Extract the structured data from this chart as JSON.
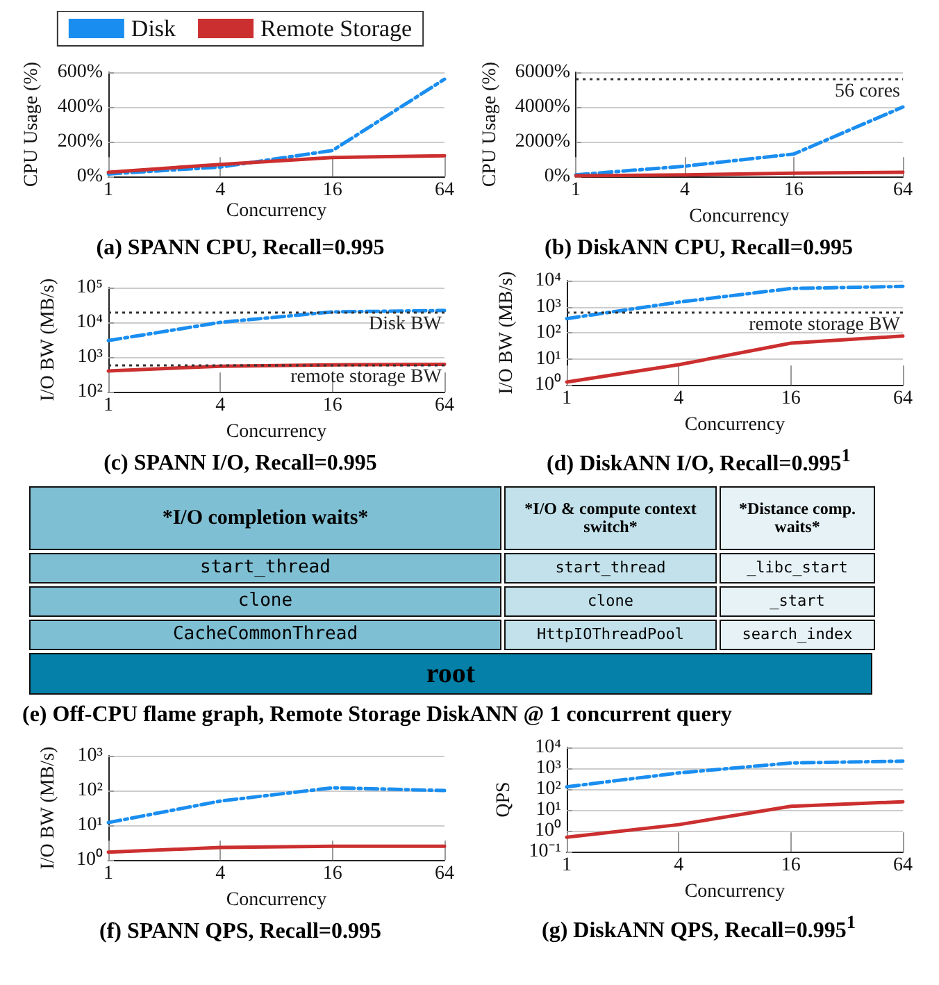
{
  "chart_data": [
    {
      "type": "line",
      "title": "(a) SPANN CPU, Recall=0.995",
      "xlabel": "Concurrency",
      "ylabel": "CPU Usage (%)",
      "log": "x",
      "x": [
        1,
        4,
        16,
        64
      ],
      "xlim": [
        1,
        64
      ],
      "xticks": [
        1,
        4,
        16,
        64
      ],
      "ylim": [
        0,
        600
      ],
      "yticks": [
        {
          "value": 0,
          "label": "0%"
        },
        {
          "value": 200,
          "label": "200%"
        },
        {
          "value": 400,
          "label": "400%"
        },
        {
          "value": 600,
          "label": "600%"
        }
      ],
      "grid": "y",
      "legend": "top",
      "series": [
        {
          "name": "Disk",
          "color": "#1a8ef0",
          "line_style": "dashed",
          "values": [
            15,
            55,
            150,
            560
          ]
        },
        {
          "name": "Remote Storage",
          "color": "#cc2f2f",
          "line_style": "solid",
          "values": [
            25,
            70,
            110,
            120
          ]
        }
      ]
    },
    {
      "type": "line",
      "title": "(b) DiskANN CPU, Recall=0.995",
      "xlabel": "Concurrency",
      "ylabel": "CPU Usage (%)",
      "log": "x",
      "x": [
        1,
        4,
        16,
        64
      ],
      "xlim": [
        1,
        64
      ],
      "xticks": [
        1,
        4,
        16,
        64
      ],
      "ylim": [
        0,
        6000
      ],
      "yticks": [
        {
          "value": 0,
          "label": "0%"
        },
        {
          "value": 2000,
          "label": "2000%"
        },
        {
          "value": 4000,
          "label": "4000%"
        },
        {
          "value": 6000,
          "label": "6000%"
        }
      ],
      "grid": "y",
      "ref_lines": [
        {
          "axis": "y",
          "value": 5600,
          "label": "56 cores",
          "line_style": "dotted",
          "color": "#333333"
        }
      ],
      "series": [
        {
          "color": "#1a8ef0",
          "line_style": "dashed",
          "values": [
            100,
            600,
            1300,
            4000
          ]
        },
        {
          "color": "#cc2f2f",
          "line_style": "solid",
          "values": [
            50,
            100,
            200,
            250
          ]
        }
      ]
    },
    {
      "type": "line",
      "title": "(c) SPANN I/O, Recall=0.995",
      "xlabel": "Concurrency",
      "ylabel": "I/O BW (MB/s)",
      "log": "xy",
      "x": [
        1,
        4,
        16,
        64
      ],
      "xlim": [
        1,
        64
      ],
      "xticks": [
        1,
        4,
        16,
        64
      ],
      "ylim": [
        100,
        100000
      ],
      "yticks": [
        {
          "value": 100,
          "label": "10²"
        },
        {
          "value": 1000,
          "label": "10³"
        },
        {
          "value": 10000,
          "label": "10⁴"
        },
        {
          "value": 100000,
          "label": "10⁵"
        }
      ],
      "grid": "y",
      "ref_lines": [
        {
          "axis": "y",
          "value": 20000,
          "label": "Disk BW",
          "line_style": "dotted",
          "color": "#333333"
        },
        {
          "axis": "y",
          "value": 600,
          "label": "remote storage BW",
          "line_style": "dotted",
          "color": "#333333"
        }
      ],
      "series": [
        {
          "color": "#1a8ef0",
          "line_style": "dashed",
          "values": [
            3000,
            10000,
            20000,
            22000
          ]
        },
        {
          "color": "#cc2f2f",
          "line_style": "solid",
          "values": [
            400,
            550,
            600,
            620
          ]
        }
      ]
    },
    {
      "type": "line",
      "title": "(d) DiskANN I/O, Recall=0.995$^{1}$",
      "xlabel": "Concurrency",
      "ylabel": "I/O BW (MB/s)",
      "log": "xy",
      "x": [
        1,
        4,
        16,
        64
      ],
      "xlim": [
        1,
        64
      ],
      "xticks": [
        1,
        4,
        16,
        64
      ],
      "ylim": [
        1,
        10000
      ],
      "yticks": [
        {
          "value": 1,
          "label": "10⁰"
        },
        {
          "value": 10,
          "label": "10¹"
        },
        {
          "value": 100,
          "label": "10²"
        },
        {
          "value": 1000,
          "label": "10³"
        },
        {
          "value": 10000,
          "label": "10⁴"
        }
      ],
      "grid": "y",
      "ref_lines": [
        {
          "axis": "y",
          "value": 600,
          "label": "remote storage BW",
          "line_style": "dotted",
          "color": "#333333"
        }
      ],
      "series": [
        {
          "color": "#1a8ef0",
          "line_style": "dashed",
          "values": [
            350,
            1500,
            5000,
            6000
          ]
        },
        {
          "color": "#cc2f2f",
          "line_style": "solid",
          "values": [
            1.3,
            6,
            40,
            75
          ]
        }
      ]
    },
    {
      "type": "other",
      "title": "(e) Off-CPU flame graph, Remote Storage DiskANN @ 1 concurrent query",
      "colors": [
        "#7fbfd3",
        "#c2e1ea",
        "#e6f2f6",
        "#0580a8"
      ],
      "annotations": [
        "*I/O completion waits*",
        "*I/O & compute context switch*",
        "*Distance comp. waits*",
        "start_thread",
        "start_thread",
        "_libc_start",
        "clone",
        "clone",
        "_start",
        "CacheCommonThread",
        "HttpIOThreadPool",
        "search_index",
        "root"
      ]
    },
    {
      "type": "line",
      "title": "(f) SPANN QPS, Recall=0.995",
      "xlabel": "Concurrency",
      "ylabel": "I/O BW (MB/s)",
      "log": "xy",
      "x": [
        1,
        4,
        16,
        64
      ],
      "xlim": [
        1,
        64
      ],
      "xticks": [
        1,
        4,
        16,
        64
      ],
      "ylim": [
        1,
        1000
      ],
      "yticks": [
        {
          "value": 1,
          "label": "10⁰"
        },
        {
          "value": 10,
          "label": "10¹"
        },
        {
          "value": 100,
          "label": "10²"
        },
        {
          "value": 1000,
          "label": "10³"
        }
      ],
      "grid": "y",
      "series": [
        {
          "color": "#1a8ef0",
          "line_style": "dashed",
          "values": [
            12,
            50,
            120,
            100
          ]
        },
        {
          "color": "#cc2f2f",
          "line_style": "solid",
          "values": [
            1.7,
            2.3,
            2.5,
            2.5
          ]
        }
      ]
    },
    {
      "type": "line",
      "title": "(g) DiskANN QPS, Recall=0.995$^{1}$",
      "xlabel": "Concurrency",
      "ylabel": "QPS",
      "log": "xy",
      "x": [
        1,
        4,
        16,
        64
      ],
      "xlim": [
        1,
        64
      ],
      "xticks": [
        1,
        4,
        16,
        64
      ],
      "ylim": [
        0.1,
        10000
      ],
      "yticks": [
        {
          "value": 0.1,
          "label": "10⁻¹"
        },
        {
          "value": 1,
          "label": "10⁰"
        },
        {
          "value": 10,
          "label": "10¹"
        },
        {
          "value": 100,
          "label": "10²"
        },
        {
          "value": 1000,
          "label": "10³"
        },
        {
          "value": 10000,
          "label": "10⁴"
        }
      ],
      "grid": "y",
      "series": [
        {
          "color": "#1a8ef0",
          "line_style": "dashed",
          "values": [
            130,
            600,
            1800,
            2200
          ]
        },
        {
          "color": "#cc2f2f",
          "line_style": "solid",
          "values": [
            0.5,
            2,
            15,
            25
          ]
        }
      ]
    }
  ]
}
